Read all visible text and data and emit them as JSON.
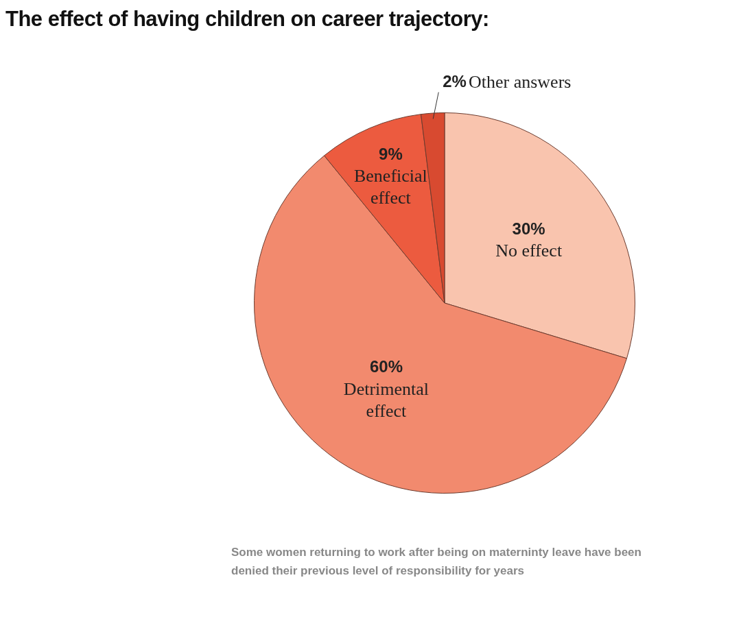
{
  "chart_data": {
    "type": "pie",
    "title": "The effect of having children on career trajectory:",
    "categories": [
      "No effect",
      "Detrimental effect",
      "Beneficial effect",
      "Other answers"
    ],
    "values": [
      30,
      60,
      9,
      2
    ],
    "value_labels": [
      "30%",
      "60%",
      "9%",
      "2%"
    ],
    "colors": [
      "#f9c4ae",
      "#f28a6e",
      "#ec5b3f",
      "#d84a30"
    ],
    "legend": false,
    "annotations": [
      "Some women returning to work after being on materninty leave have been denied their previous level of responsibility for years"
    ]
  }
}
